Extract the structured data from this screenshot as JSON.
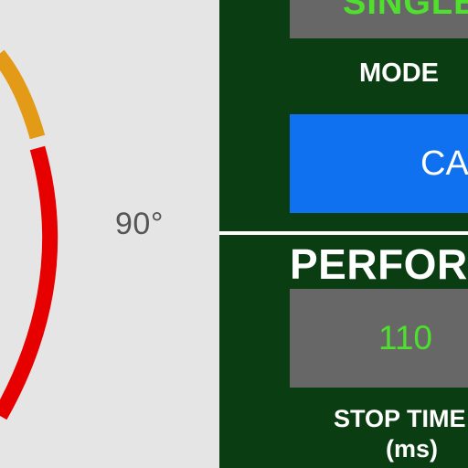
{
  "gauge": {
    "angle_label": "90°",
    "colors": {
      "warning": "#e39a16",
      "danger": "#e60000"
    }
  },
  "panel": {
    "mode_value_visible": "SINGLE",
    "mode_label": "MODE",
    "action_button_visible": "CA",
    "performance_title_visible": "PERFOR",
    "stop_time_value": "110",
    "stop_time_label_visible": "STOP TIME",
    "stop_time_unit": "(ms)",
    "colors": {
      "panel_background": "#0b3d12",
      "value_green": "#4ee02c",
      "button_blue": "#0f70f0",
      "box_gray": "#676767"
    }
  }
}
